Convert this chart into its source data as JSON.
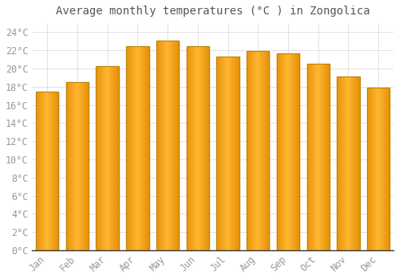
{
  "title": "Average monthly temperatures (°C ) in Zongolica",
  "months": [
    "Jan",
    "Feb",
    "Mar",
    "Apr",
    "May",
    "Jun",
    "Jul",
    "Aug",
    "Sep",
    "Oct",
    "Nov",
    "Dec"
  ],
  "values": [
    17.5,
    18.5,
    20.3,
    22.5,
    23.1,
    22.5,
    21.3,
    21.9,
    21.7,
    20.5,
    19.1,
    17.9
  ],
  "bar_color_center": "#FFB733",
  "bar_color_edge": "#E8920A",
  "bar_border_color": "#B8820A",
  "background_color": "#FFFFFF",
  "grid_color": "#DDDDDD",
  "ylim": [
    0,
    25
  ],
  "ytick_step": 2,
  "title_fontsize": 10,
  "tick_fontsize": 8.5,
  "tick_label_color": "#999999",
  "title_color": "#555555",
  "font_family": "monospace",
  "bar_width": 0.75,
  "bottom_spine_color": "#333333"
}
